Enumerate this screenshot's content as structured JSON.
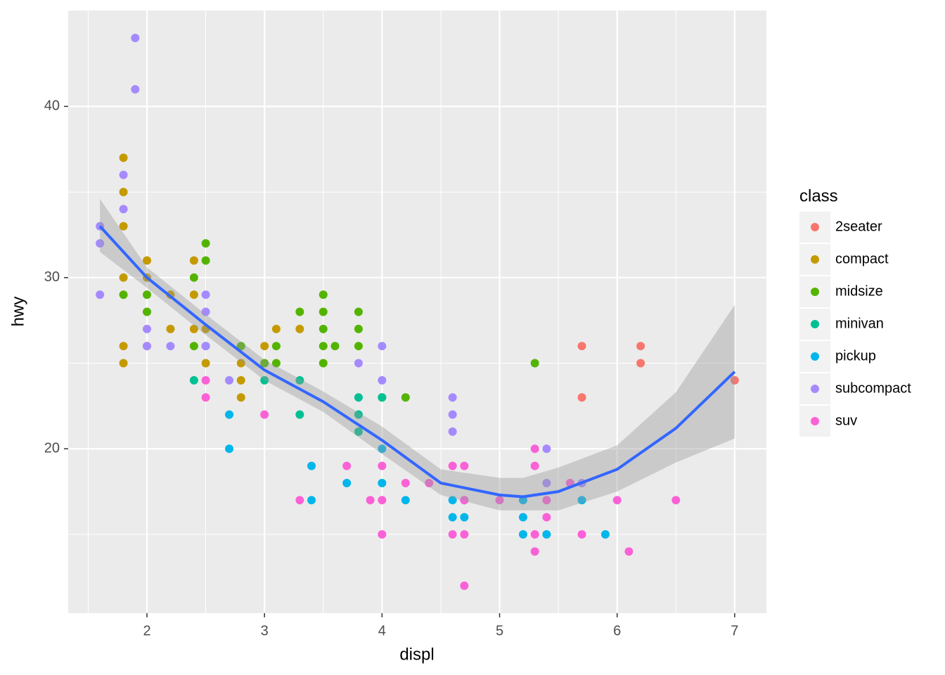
{
  "chart_data": {
    "type": "scatter",
    "x_label": "displ",
    "y_label": "hwy",
    "legend_title": "class",
    "xlim": [
      1.33,
      7.27
    ],
    "ylim": [
      10.4,
      45.6
    ],
    "xticks": [
      2,
      3,
      4,
      5,
      6,
      7
    ],
    "yticks": [
      20,
      30,
      40
    ],
    "xminor": [
      1.5,
      2.5,
      3.5,
      4.5,
      5.5,
      6.5
    ],
    "yminor": [
      15,
      25,
      35
    ],
    "grid": true,
    "legend": "right",
    "series": [
      {
        "name": "2seater",
        "color": "#F8766D",
        "x": [
          5.7,
          5.7,
          6.2,
          6.2,
          7
        ],
        "y": [
          26,
          23,
          26,
          25,
          24
        ]
      },
      {
        "name": "compact",
        "color": "#C49A00",
        "x": [
          1.8,
          1.8,
          1.8,
          1.8,
          1.8,
          1.8,
          2,
          2,
          2,
          2.2,
          2.2,
          2.4,
          2.4,
          2.4,
          2.5,
          2.5,
          2.8,
          2.8,
          2.8,
          3,
          3.1,
          3.3
        ],
        "y": [
          37,
          35,
          33,
          30,
          26,
          25,
          31,
          30,
          26,
          29,
          27,
          31,
          29,
          27,
          27,
          25,
          25,
          24,
          23,
          26,
          27,
          27
        ]
      },
      {
        "name": "midsize",
        "color": "#53B400",
        "x": [
          1.8,
          2,
          2,
          2.4,
          2.4,
          2.5,
          2.5,
          2.5,
          2.8,
          3,
          3.1,
          3.1,
          3.3,
          3.5,
          3.5,
          3.5,
          3.5,
          3.5,
          3.6,
          3.8,
          3.8,
          3.8,
          4,
          4.2,
          5.3
        ],
        "y": [
          29,
          29,
          28,
          30,
          26,
          32,
          31,
          26,
          26,
          25,
          26,
          25,
          28,
          29,
          28,
          27,
          26,
          25,
          26,
          28,
          27,
          26,
          23,
          23,
          25
        ]
      },
      {
        "name": "minivan",
        "color": "#00C094",
        "x": [
          2.4,
          3,
          3.3,
          3.3,
          3.8,
          3.8,
          3.8,
          4
        ],
        "y": [
          24,
          24,
          24,
          22,
          23,
          22,
          21,
          23
        ]
      },
      {
        "name": "pickup",
        "color": "#00B6EB",
        "x": [
          2.7,
          2.7,
          3.4,
          3.4,
          3.7,
          4,
          4,
          4.2,
          4.6,
          4.6,
          4.7,
          4.7,
          5.2,
          5.2,
          5.2,
          5.4,
          5.7,
          5.9
        ],
        "y": [
          22,
          20,
          19,
          17,
          18,
          20,
          18,
          17,
          17,
          16,
          17,
          16,
          17,
          16,
          15,
          15,
          17,
          15
        ]
      },
      {
        "name": "subcompact",
        "color": "#A58AFF",
        "x": [
          1.6,
          1.6,
          1.6,
          1.8,
          1.8,
          1.9,
          1.9,
          2,
          2,
          2.2,
          2.5,
          2.5,
          2.5,
          2.7,
          3.8,
          4,
          4,
          4.6,
          4.6,
          4.6,
          5.4,
          5.4,
          5.7
        ],
        "y": [
          33,
          32,
          29,
          36,
          34,
          44,
          41,
          27,
          26,
          26,
          29,
          28,
          26,
          24,
          25,
          26,
          24,
          23,
          22,
          21,
          20,
          18,
          18
        ]
      },
      {
        "name": "suv",
        "color": "#FB61D7",
        "x": [
          2.5,
          2.5,
          3,
          3.3,
          3.7,
          3.9,
          4,
          4,
          4,
          4.2,
          4.4,
          4.6,
          4.6,
          4.7,
          4.7,
          4.7,
          4.7,
          5,
          5.3,
          5.3,
          5.3,
          5.3,
          5.4,
          5.4,
          5.6,
          5.7,
          6,
          6.1,
          6.5
        ],
        "y": [
          24,
          23,
          22,
          17,
          19,
          17,
          19,
          17,
          15,
          18,
          18,
          19,
          15,
          19,
          17,
          15,
          12,
          17,
          20,
          19,
          15,
          14,
          17,
          16,
          18,
          15,
          17,
          14,
          17
        ]
      }
    ],
    "smooth": {
      "color": "#3366FF",
      "band_color": "#999999",
      "x": [
        1.6,
        2,
        2.5,
        3,
        3.5,
        4,
        4.5,
        5,
        5.2,
        5.5,
        6,
        6.5,
        7
      ],
      "y": [
        33.0,
        30.0,
        27.25,
        24.6,
        22.75,
        20.5,
        18.0,
        17.3,
        17.2,
        17.5,
        18.8,
        21.2,
        24.5
      ],
      "lower": [
        31.5,
        29.4,
        26.65,
        24.0,
        22.15,
        19.7,
        17.3,
        16.4,
        16.4,
        16.4,
        17.5,
        19.2,
        20.6
      ],
      "upper": [
        34.6,
        30.6,
        27.85,
        25.2,
        23.35,
        21.3,
        18.8,
        18.3,
        18.3,
        18.9,
        20.2,
        23.3,
        28.4
      ]
    }
  }
}
